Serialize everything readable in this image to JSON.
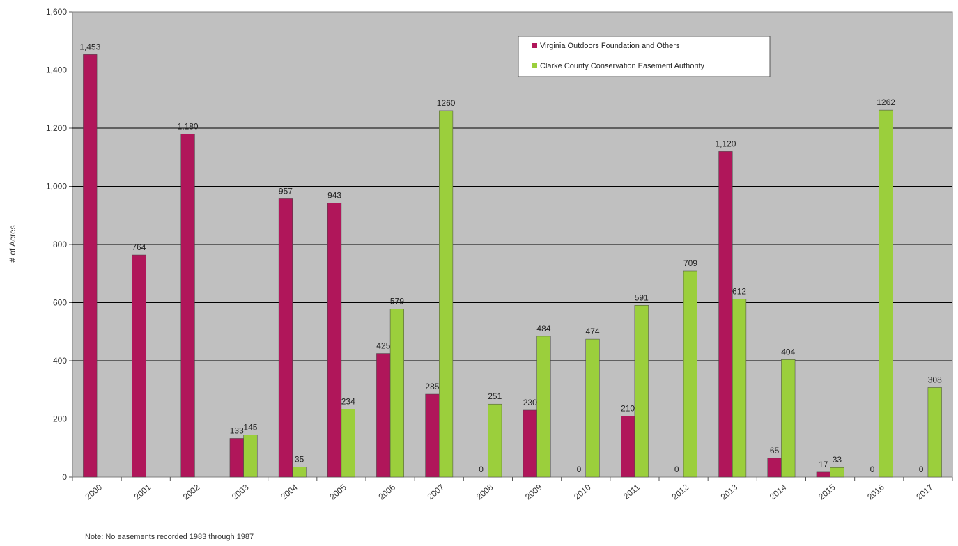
{
  "chart_data": {
    "type": "bar",
    "title": "",
    "xlabel": "",
    "ylabel": "# of Acres",
    "ylim": [
      0,
      1600
    ],
    "yticks": [
      0,
      200,
      400,
      600,
      800,
      1000,
      1200,
      1400,
      1600
    ],
    "ytick_labels": [
      "0",
      "200",
      "400",
      "600",
      "800",
      "1,000",
      "1,200",
      "1,400",
      "1,600"
    ],
    "grid": true,
    "legend_position": "top-right",
    "categories": [
      "2000",
      "2001",
      "2002",
      "2003",
      "2004",
      "2005",
      "2006",
      "2007",
      "2008",
      "2009",
      "2010",
      "2011",
      "2012",
      "2013",
      "2014",
      "2015",
      "2016",
      "2017"
    ],
    "series": [
      {
        "name": "Virginia Outdoors Foundation and Others",
        "color": "#b0165a",
        "values": [
          1453,
          764,
          1180,
          133,
          957,
          943,
          425,
          285,
          0,
          230,
          0,
          210,
          0,
          1120,
          65,
          17,
          0,
          0
        ],
        "labels": [
          "1,453",
          "764",
          "1,180",
          "133",
          "957",
          "943",
          "425",
          "285",
          "0",
          "230",
          "0",
          "210",
          "0",
          "1,120",
          "65",
          "17",
          "0",
          "0"
        ]
      },
      {
        "name": "Clarke County Conservation Easement Authority",
        "color": "#9bcf3c",
        "values": [
          null,
          null,
          null,
          145,
          35,
          234,
          579,
          1260,
          251,
          484,
          474,
          591,
          709,
          612,
          404,
          33,
          1262,
          308
        ],
        "labels": [
          "",
          "",
          "",
          "145",
          "35",
          "234",
          "579",
          "1260",
          "251",
          "484",
          "474",
          "591",
          "709",
          "612",
          "404",
          "33",
          "1262",
          "308"
        ]
      }
    ],
    "plot_background": "#c0c0c0"
  },
  "note": "Note: No easements recorded 1983 through 1987"
}
